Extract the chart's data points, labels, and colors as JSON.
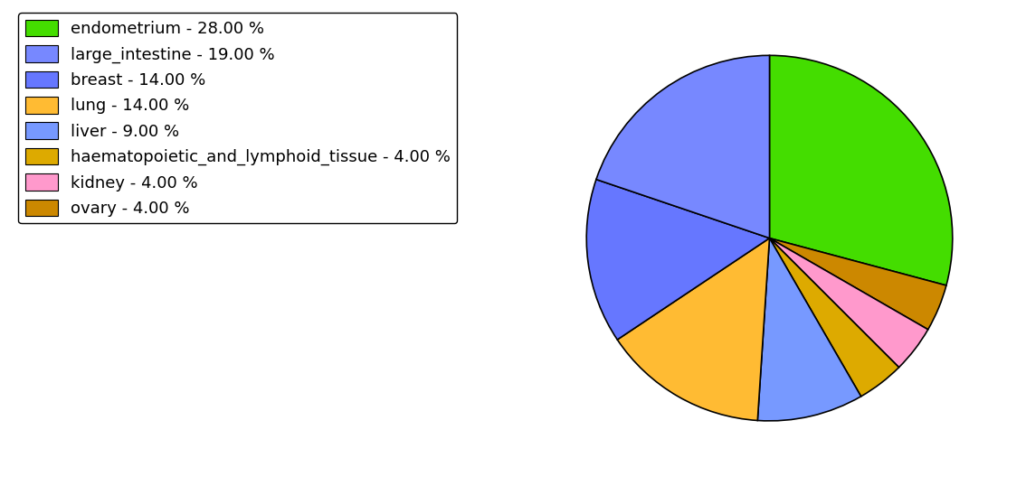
{
  "labels": [
    "endometrium",
    "large_intestine",
    "breast",
    "lung",
    "liver",
    "haematopoietic_and_lymphoid_tissue",
    "kidney",
    "ovary"
  ],
  "values": [
    28,
    19,
    14,
    14,
    9,
    4,
    4,
    4
  ],
  "pie_order_labels": [
    "endometrium",
    "haematopoietic_and_lymphoid_tissue",
    "kidney",
    "ovary",
    "liver",
    "lung",
    "breast",
    "large_intestine"
  ],
  "pie_order_values": [
    28,
    4,
    4,
    4,
    9,
    14,
    14,
    19
  ],
  "pie_order_colors": [
    "#44dd00",
    "#cc8800",
    "#ff99cc",
    "#ddaa00",
    "#7799ff",
    "#ffbb33",
    "#6677ff",
    "#7788ff"
  ],
  "legend_colors": [
    "#44dd00",
    "#7788ff",
    "#6677ff",
    "#ffbb33",
    "#7799ff",
    "#ddaa00",
    "#ff99cc",
    "#cc8800"
  ],
  "legend_labels": [
    "endometrium - 28.00 %",
    "large_intestine - 19.00 %",
    "breast - 14.00 %",
    "lung - 14.00 %",
    "liver - 9.00 %",
    "haematopoietic_and_lymphoid_tissue - 4.00 %",
    "kidney - 4.00 %",
    "ovary - 4.00 %"
  ],
  "figsize": [
    11.34,
    5.38
  ],
  "dpi": 100,
  "startangle": 90,
  "legend_fontsize": 13
}
